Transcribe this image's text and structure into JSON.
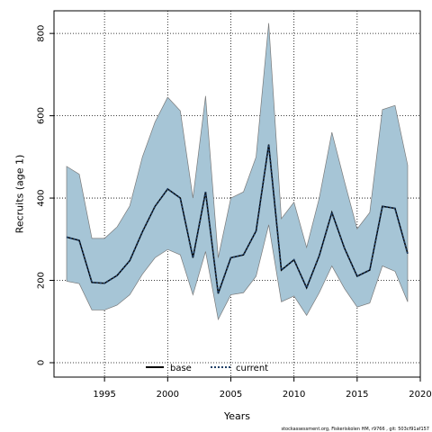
{
  "chart_data": {
    "type": "line",
    "xlabel": "Years",
    "ylabel": "Recruits (age 1)",
    "xlim": [
      1991,
      2020
    ],
    "ylim": [
      -35,
      855
    ],
    "x_ticks": [
      1995,
      2000,
      2005,
      2010,
      2015,
      2020
    ],
    "y_ticks": [
      0,
      200,
      400,
      600,
      800
    ],
    "grid": true,
    "legend_position": "bottom-center",
    "x": [
      1992,
      1993,
      1994,
      1995,
      1996,
      1997,
      1998,
      1999,
      2000,
      2001,
      2002,
      2003,
      2004,
      2005,
      2006,
      2007,
      2008,
      2009,
      2010,
      2011,
      2012,
      2013,
      2014,
      2015,
      2016,
      2017,
      2018,
      2019
    ],
    "band": {
      "color": "#a6c5d6",
      "edge_color": "#7a7a7a",
      "upper": [
        477,
        458,
        302,
        302,
        330,
        381,
        500,
        585,
        645,
        612,
        400,
        648,
        255,
        400,
        415,
        500,
        825,
        350,
        390,
        280,
        400,
        560,
        440,
        325,
        365,
        615,
        625,
        480
      ],
      "lower": [
        198,
        192,
        128,
        128,
        140,
        165,
        215,
        255,
        275,
        262,
        165,
        270,
        105,
        165,
        170,
        210,
        335,
        148,
        162,
        115,
        170,
        235,
        180,
        135,
        145,
        235,
        222,
        148
      ]
    },
    "series": [
      {
        "name": "base",
        "color": "#000000",
        "style": "solid",
        "values": [
          305,
          297,
          195,
          193,
          212,
          248,
          318,
          380,
          422,
          400,
          255,
          415,
          168,
          255,
          262,
          320,
          530,
          225,
          250,
          182,
          260,
          365,
          278,
          210,
          225,
          380,
          375,
          265
        ]
      },
      {
        "name": "current",
        "color": "#1f3f66",
        "style": "dotted",
        "values": [
          305,
          297,
          195,
          193,
          212,
          248,
          318,
          380,
          422,
          400,
          255,
          415,
          168,
          255,
          262,
          320,
          530,
          225,
          250,
          182,
          260,
          365,
          278,
          210,
          225,
          380,
          375,
          265
        ]
      }
    ]
  },
  "footer": "stockassessment.org, Fiskeriskolen HM, r9766 , git: 503cf91af157"
}
